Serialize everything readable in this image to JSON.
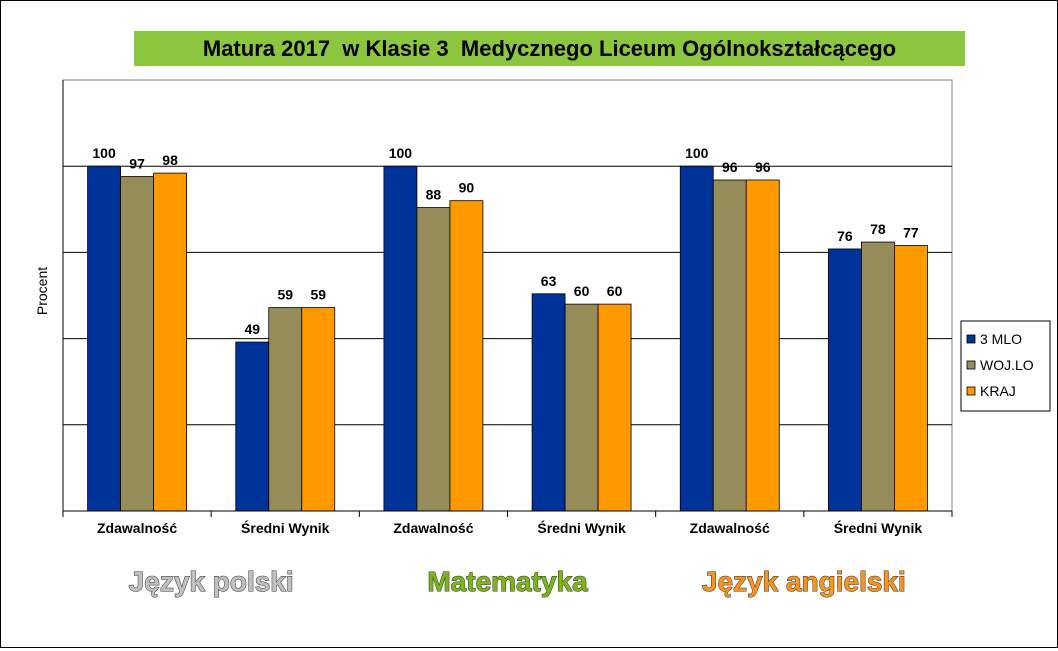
{
  "chart_data": {
    "type": "bar",
    "title": "Matura 2017  w Klasie 3  Medycznego Liceum Ogólnokształcącego",
    "ylabel": "Procent",
    "xlabel": "",
    "ylim": [
      0,
      125
    ],
    "grid": true,
    "legend_position": "right",
    "categories": [
      "Zdawalność",
      "Średni Wynik",
      "Zdawalność",
      "Średni Wynik",
      "Zdawalność",
      "Średni Wynik"
    ],
    "groups": [
      {
        "label": "Język polski",
        "color": "#c0c0c0"
      },
      {
        "label": "Matematyka",
        "color": "#7cb518"
      },
      {
        "label": "Język angielski",
        "color": "#f7941d"
      }
    ],
    "series": [
      {
        "name": "3 MLO",
        "color": "#003399",
        "values": [
          100,
          49,
          100,
          63,
          100,
          76
        ]
      },
      {
        "name": "WOJ.LO",
        "color": "#968c5a",
        "values": [
          97,
          59,
          88,
          60,
          96,
          78
        ]
      },
      {
        "name": "KRAJ",
        "color": "#ff9900",
        "values": [
          98,
          59,
          90,
          60,
          96,
          77
        ]
      }
    ]
  }
}
